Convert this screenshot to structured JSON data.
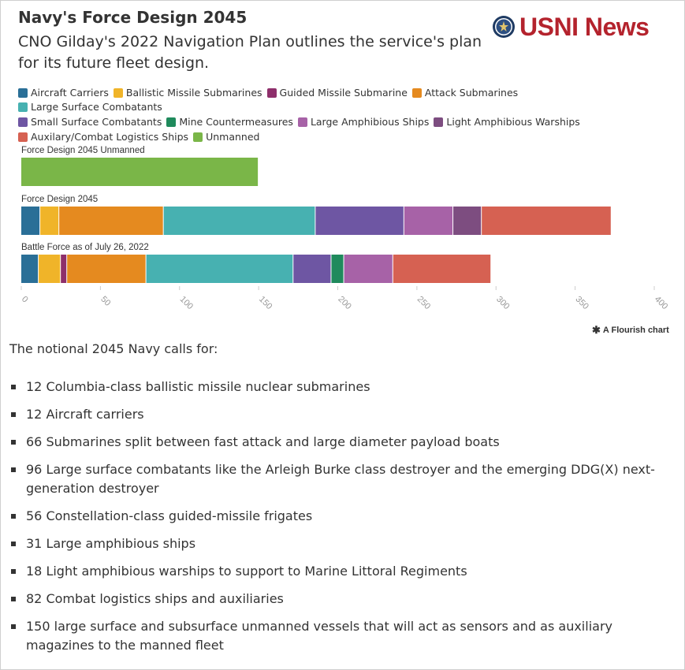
{
  "title": "Navy's Force Design 2045",
  "subtitle": "CNO Gilday's 2022 Navigation Plan outlines the service's plan for its future fleet design.",
  "logo": {
    "text": "USNI News",
    "icon": "navy-seal-icon",
    "color": "#b4232d"
  },
  "chart_data": {
    "type": "bar",
    "orientation": "horizontal",
    "stacked": true,
    "categories": [
      "Force Design 2045 Unmanned",
      "Force Design 2045",
      "Battle Force as of July 26, 2022"
    ],
    "series": [
      {
        "name": "Aircraft Carriers",
        "color": "#2a6f97",
        "values": [
          0,
          12,
          11
        ]
      },
      {
        "name": "Ballistic Missile Submarines",
        "color": "#f0b429",
        "values": [
          0,
          12,
          14
        ]
      },
      {
        "name": "Guided Missile Submarine",
        "color": "#8e2f6b",
        "values": [
          0,
          0,
          4
        ]
      },
      {
        "name": "Attack Submarines",
        "color": "#e58a1f",
        "values": [
          0,
          66,
          50
        ]
      },
      {
        "name": "Large Surface Combatants",
        "color": "#47b1b1",
        "values": [
          0,
          96,
          93
        ]
      },
      {
        "name": "Small Surface Combatants",
        "color": "#6e56a3",
        "values": [
          0,
          56,
          24
        ]
      },
      {
        "name": "Mine Countermeasures",
        "color": "#1f8a5c",
        "values": [
          0,
          0,
          8
        ]
      },
      {
        "name": "Large Amphibious Ships",
        "color": "#a762a7",
        "values": [
          0,
          31,
          31
        ]
      },
      {
        "name": "Light Amphibious Warships",
        "color": "#7d4d80",
        "values": [
          0,
          18,
          0
        ]
      },
      {
        "name": "Auxilary/Combat Logistics Ships",
        "color": "#d66152",
        "values": [
          0,
          82,
          62
        ]
      },
      {
        "name": "Unmanned",
        "color": "#7ab648",
        "values": [
          150,
          0,
          0
        ]
      }
    ],
    "xlim": [
      0,
      400
    ],
    "xticks": [
      "0",
      "50",
      "100",
      "150",
      "200",
      "250",
      "300",
      "350",
      "400"
    ],
    "grid": false,
    "legend": "top"
  },
  "flourish": {
    "icon": "flourish-asterisk-icon",
    "glyph": "✱",
    "label": "A Flourish chart"
  },
  "intro": "The notional 2045 Navy calls for:",
  "items": [
    "12 Columbia-class ballistic missile nuclear submarines",
    "12 Aircraft carriers",
    "66 Submarines split between fast attack and large diameter payload boats",
    "96 Large surface combatants like the Arleigh Burke class destroyer and the emerging DDG(X) next-generation destroyer",
    "56 Constellation-class guided-missile frigates",
    "31 Large amphibious ships",
    "18 Light amphibious warships to support to Marine Littoral Regiments",
    "82 Combat logistics ships and auxiliaries",
    "150 large surface and subsurface unmanned vessels that will act as sensors and as auxiliary magazines to the manned fleet"
  ]
}
